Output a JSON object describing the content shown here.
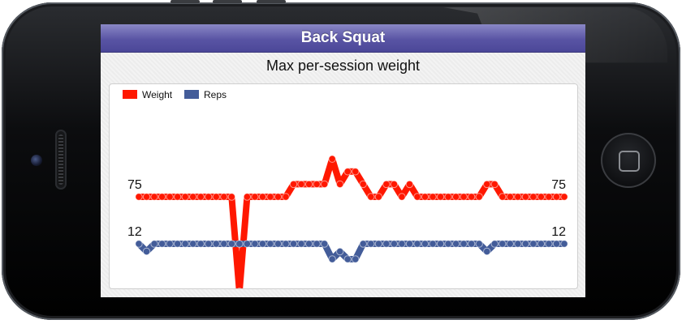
{
  "app": {
    "title": "Back Squat",
    "subtitle": "Max per-session weight"
  },
  "colors": {
    "weight": "#ff1800",
    "reps": "#435c99",
    "navbar": "#5954a4"
  },
  "chart_data": {
    "type": "line",
    "title": "Max per-session weight",
    "xlabel": "",
    "ylabel": "",
    "grid": false,
    "legend": "top-left",
    "series": [
      {
        "name": "Weight",
        "color": "#ff1800",
        "values": [
          75,
          75,
          75,
          75,
          75,
          75,
          75,
          75,
          75,
          75,
          75,
          75,
          75,
          60,
          75,
          75,
          75,
          75,
          75,
          75,
          77,
          77,
          77,
          77,
          77,
          81,
          77,
          79,
          79,
          77,
          75,
          75,
          77,
          77,
          75,
          77,
          75,
          75,
          75,
          75,
          75,
          75,
          75,
          75,
          75,
          77,
          77,
          75,
          75,
          75,
          75,
          75,
          75,
          75,
          75,
          75
        ],
        "start_label": "75",
        "end_label": "75"
      },
      {
        "name": "Reps",
        "color": "#435c99",
        "values": [
          12,
          11,
          12,
          12,
          12,
          12,
          12,
          12,
          12,
          12,
          12,
          12,
          12,
          12,
          12,
          12,
          12,
          12,
          12,
          12,
          12,
          12,
          12,
          12,
          12,
          10,
          11,
          10,
          10,
          12,
          12,
          12,
          12,
          12,
          12,
          12,
          12,
          12,
          12,
          12,
          12,
          12,
          12,
          12,
          12,
          11,
          12,
          12,
          12,
          12,
          12,
          12,
          12,
          12,
          12,
          12
        ],
        "start_label": "12",
        "end_label": "12"
      }
    ]
  }
}
